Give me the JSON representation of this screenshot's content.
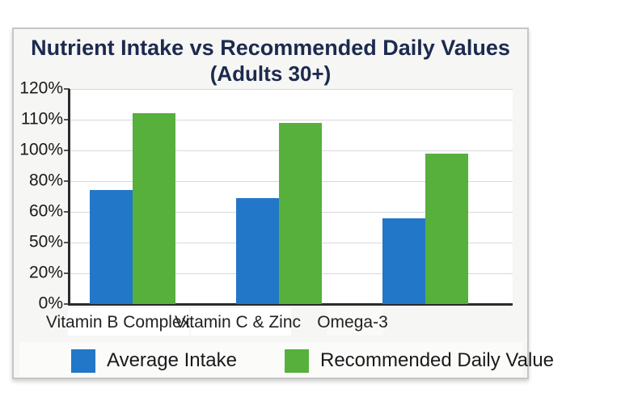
{
  "chart": {
    "title": "Nutrient Intake vs Recommended Daily Values",
    "subtitle": "(Adults 30+)"
  },
  "chart_data": {
    "type": "bar",
    "title": "Nutrient Intake vs Recommended Daily Values (Adults 30+)",
    "categories": [
      "Vitamin B Complex",
      "Vitamin C & Zinc",
      "Omega-3"
    ],
    "series": [
      {
        "name": "Average Intake",
        "color": "#2377c8",
        "values": [
          74,
          69,
          58
        ]
      },
      {
        "name": "Recommended Daily Value",
        "color": "#57b03c",
        "values": [
          112,
          109,
          98
        ]
      }
    ],
    "y_axis": {
      "tick_values_bottom_to_top": [
        0,
        20,
        50,
        60,
        80,
        100,
        110,
        120
      ],
      "tick_labels_bottom_to_top": [
        "0%",
        "20%",
        "50%",
        "60%",
        "80%",
        "100%",
        "110%",
        "120%"
      ],
      "ylim": [
        0,
        120
      ],
      "note_labels_as_printed_top_to_bottom": [
        "120%",
        "110%",
        "100%",
        "80%",
        "60%",
        "50%",
        "20%",
        "0%"
      ]
    },
    "xlabel": "",
    "ylabel": "",
    "grid": true,
    "legend_position": "bottom"
  },
  "colors": {
    "bar_blue": "#2377c8",
    "bar_green": "#57b03c",
    "title_navy": "#1c2a4e",
    "axis_dark": "#2b2b2b",
    "gridline_gray": "#d8d8d8",
    "card_background": "#f6f6f5",
    "card_border": "#c6c6c6",
    "plot_background": "#ffffff"
  }
}
